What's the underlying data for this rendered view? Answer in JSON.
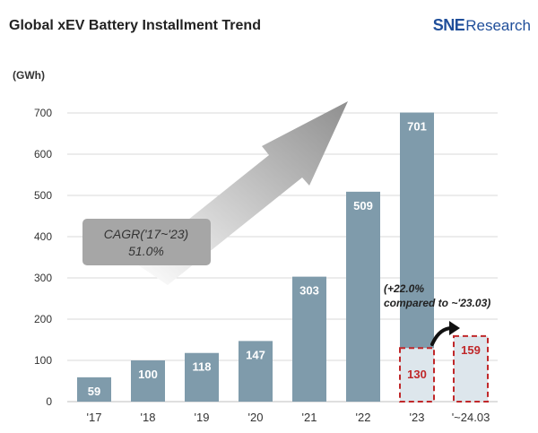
{
  "header": {
    "title": "Global xEV Battery Installment Trend",
    "logo_main": "SNE",
    "logo_sub": "Research"
  },
  "chart_data": {
    "type": "bar",
    "title": "Global xEV Battery Installment Trend",
    "ylabel": "(GWh)",
    "xlabel": "",
    "ylim": [
      0,
      700
    ],
    "yticks": [
      0,
      100,
      200,
      300,
      400,
      500,
      600,
      700
    ],
    "grid": true,
    "categories": [
      "'17",
      "'18",
      "'19",
      "'20",
      "'21",
      "'22",
      "'23",
      "'~24.03"
    ],
    "values": [
      59,
      100,
      118,
      147,
      303,
      509,
      701,
      159
    ],
    "partial_bar": {
      "category": "'23",
      "value": 130
    },
    "annotations": {
      "cagr_line1": "CAGR('17~'23)",
      "cagr_line2": "51.0%",
      "growth_line1": "(+22.0%",
      "growth_line2": "compared to ~'23.03)"
    },
    "colors": {
      "bar": "#7f9bab",
      "partial_fill": "#dde6ec",
      "partial_border": "#c0282a",
      "partial_text": "#c0282a",
      "grid": "#d9d9d9",
      "cagr_box": "#a6a6a6"
    }
  }
}
